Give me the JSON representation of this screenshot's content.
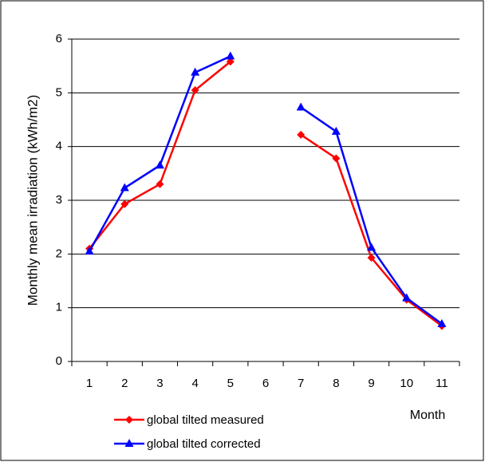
{
  "chart_data": {
    "type": "line",
    "y_label": "Monthly mean irradiation (kWh/m2)",
    "x_label": "Month",
    "categories": [
      "1",
      "2",
      "3",
      "4",
      "5",
      "6",
      "7",
      "8",
      "9",
      "10",
      "11"
    ],
    "series": [
      {
        "name": "global tilted measured",
        "color": "#ff0000",
        "marker": "diamond",
        "values": [
          2.1,
          2.93,
          3.3,
          5.05,
          5.58,
          null,
          4.22,
          3.78,
          1.93,
          1.15,
          0.66
        ]
      },
      {
        "name": "global tilted corrected",
        "color": "#0000ff",
        "marker": "triangle",
        "values": [
          2.05,
          3.23,
          3.65,
          5.38,
          5.68,
          null,
          4.73,
          4.28,
          2.12,
          1.18,
          0.7
        ]
      }
    ],
    "ylim": [
      0,
      6
    ],
    "yticks": [
      0,
      1,
      2,
      3,
      4,
      5,
      6
    ],
    "grid": true
  }
}
